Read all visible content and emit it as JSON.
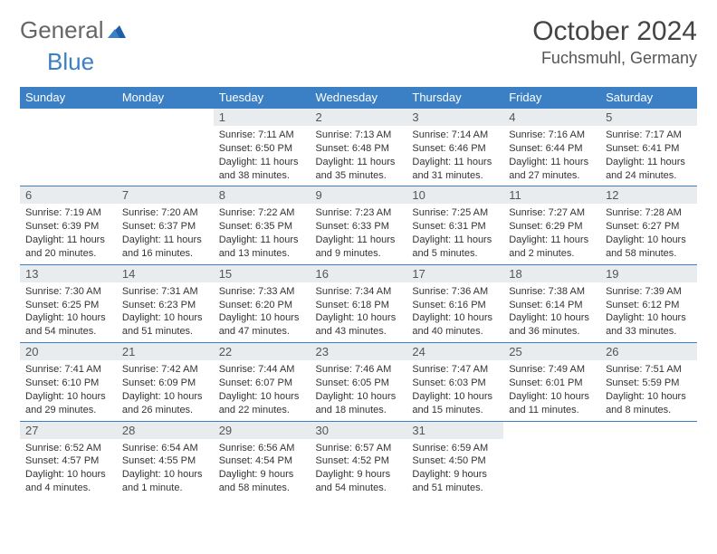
{
  "logo": {
    "part1": "General",
    "part2": "Blue"
  },
  "title": "October 2024",
  "location": "Fuchsmuhl, Germany",
  "colors": {
    "header_bg": "#3b7fc4",
    "header_text": "#ffffff",
    "daynum_bg": "#e9ecef",
    "border": "#3b7fc4",
    "logo_gray": "#666666",
    "logo_blue": "#3b7fc4"
  },
  "weekdays": [
    "Sunday",
    "Monday",
    "Tuesday",
    "Wednesday",
    "Thursday",
    "Friday",
    "Saturday"
  ],
  "leading_blanks": 2,
  "days": [
    {
      "n": 1,
      "sunrise": "7:11 AM",
      "sunset": "6:50 PM",
      "daylight": "11 hours and 38 minutes."
    },
    {
      "n": 2,
      "sunrise": "7:13 AM",
      "sunset": "6:48 PM",
      "daylight": "11 hours and 35 minutes."
    },
    {
      "n": 3,
      "sunrise": "7:14 AM",
      "sunset": "6:46 PM",
      "daylight": "11 hours and 31 minutes."
    },
    {
      "n": 4,
      "sunrise": "7:16 AM",
      "sunset": "6:44 PM",
      "daylight": "11 hours and 27 minutes."
    },
    {
      "n": 5,
      "sunrise": "7:17 AM",
      "sunset": "6:41 PM",
      "daylight": "11 hours and 24 minutes."
    },
    {
      "n": 6,
      "sunrise": "7:19 AM",
      "sunset": "6:39 PM",
      "daylight": "11 hours and 20 minutes."
    },
    {
      "n": 7,
      "sunrise": "7:20 AM",
      "sunset": "6:37 PM",
      "daylight": "11 hours and 16 minutes."
    },
    {
      "n": 8,
      "sunrise": "7:22 AM",
      "sunset": "6:35 PM",
      "daylight": "11 hours and 13 minutes."
    },
    {
      "n": 9,
      "sunrise": "7:23 AM",
      "sunset": "6:33 PM",
      "daylight": "11 hours and 9 minutes."
    },
    {
      "n": 10,
      "sunrise": "7:25 AM",
      "sunset": "6:31 PM",
      "daylight": "11 hours and 5 minutes."
    },
    {
      "n": 11,
      "sunrise": "7:27 AM",
      "sunset": "6:29 PM",
      "daylight": "11 hours and 2 minutes."
    },
    {
      "n": 12,
      "sunrise": "7:28 AM",
      "sunset": "6:27 PM",
      "daylight": "10 hours and 58 minutes."
    },
    {
      "n": 13,
      "sunrise": "7:30 AM",
      "sunset": "6:25 PM",
      "daylight": "10 hours and 54 minutes."
    },
    {
      "n": 14,
      "sunrise": "7:31 AM",
      "sunset": "6:23 PM",
      "daylight": "10 hours and 51 minutes."
    },
    {
      "n": 15,
      "sunrise": "7:33 AM",
      "sunset": "6:20 PM",
      "daylight": "10 hours and 47 minutes."
    },
    {
      "n": 16,
      "sunrise": "7:34 AM",
      "sunset": "6:18 PM",
      "daylight": "10 hours and 43 minutes."
    },
    {
      "n": 17,
      "sunrise": "7:36 AM",
      "sunset": "6:16 PM",
      "daylight": "10 hours and 40 minutes."
    },
    {
      "n": 18,
      "sunrise": "7:38 AM",
      "sunset": "6:14 PM",
      "daylight": "10 hours and 36 minutes."
    },
    {
      "n": 19,
      "sunrise": "7:39 AM",
      "sunset": "6:12 PM",
      "daylight": "10 hours and 33 minutes."
    },
    {
      "n": 20,
      "sunrise": "7:41 AM",
      "sunset": "6:10 PM",
      "daylight": "10 hours and 29 minutes."
    },
    {
      "n": 21,
      "sunrise": "7:42 AM",
      "sunset": "6:09 PM",
      "daylight": "10 hours and 26 minutes."
    },
    {
      "n": 22,
      "sunrise": "7:44 AM",
      "sunset": "6:07 PM",
      "daylight": "10 hours and 22 minutes."
    },
    {
      "n": 23,
      "sunrise": "7:46 AM",
      "sunset": "6:05 PM",
      "daylight": "10 hours and 18 minutes."
    },
    {
      "n": 24,
      "sunrise": "7:47 AM",
      "sunset": "6:03 PM",
      "daylight": "10 hours and 15 minutes."
    },
    {
      "n": 25,
      "sunrise": "7:49 AM",
      "sunset": "6:01 PM",
      "daylight": "10 hours and 11 minutes."
    },
    {
      "n": 26,
      "sunrise": "7:51 AM",
      "sunset": "5:59 PM",
      "daylight": "10 hours and 8 minutes."
    },
    {
      "n": 27,
      "sunrise": "6:52 AM",
      "sunset": "4:57 PM",
      "daylight": "10 hours and 4 minutes."
    },
    {
      "n": 28,
      "sunrise": "6:54 AM",
      "sunset": "4:55 PM",
      "daylight": "10 hours and 1 minute."
    },
    {
      "n": 29,
      "sunrise": "6:56 AM",
      "sunset": "4:54 PM",
      "daylight": "9 hours and 58 minutes."
    },
    {
      "n": 30,
      "sunrise": "6:57 AM",
      "sunset": "4:52 PM",
      "daylight": "9 hours and 54 minutes."
    },
    {
      "n": 31,
      "sunrise": "6:59 AM",
      "sunset": "4:50 PM",
      "daylight": "9 hours and 51 minutes."
    }
  ],
  "labels": {
    "sunrise": "Sunrise:",
    "sunset": "Sunset:",
    "daylight": "Daylight:"
  }
}
